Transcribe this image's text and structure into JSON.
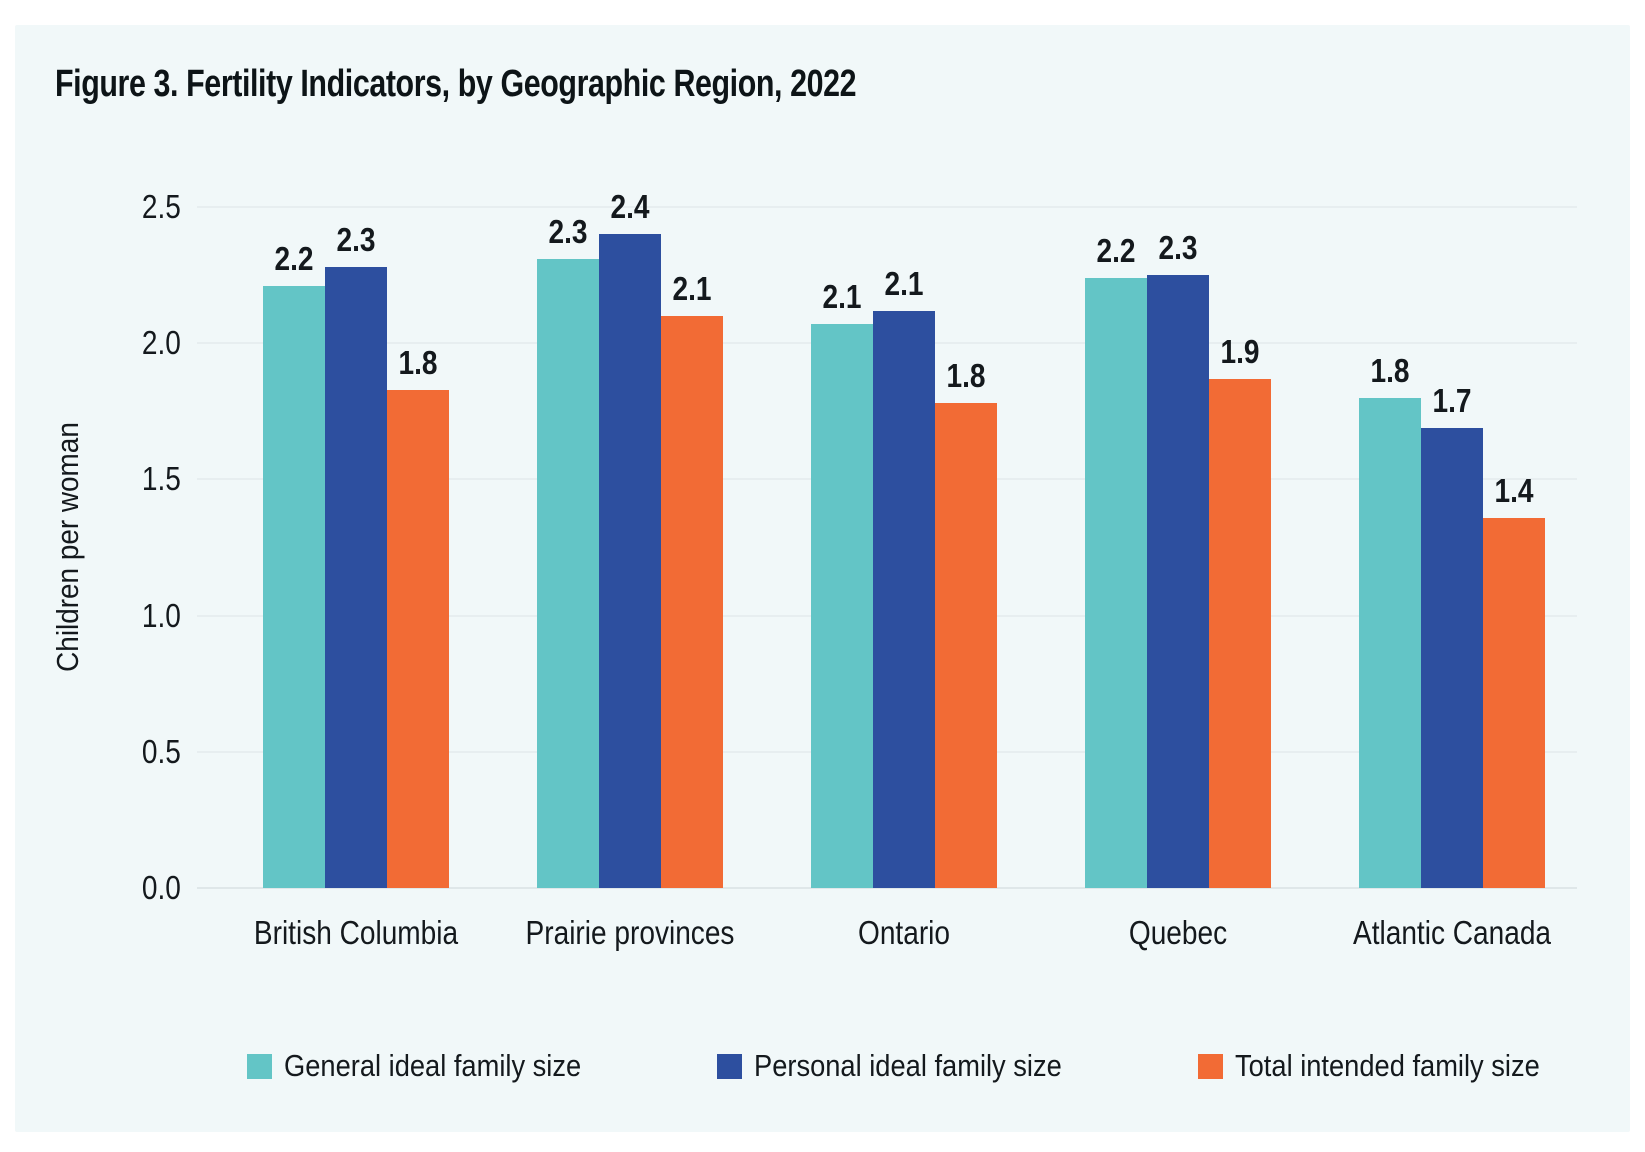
{
  "page": {
    "background": "#FFFFFF",
    "panel_background": "#F1F8F9"
  },
  "chart_data": {
    "type": "bar",
    "title": "Figure 3. Fertility Indicators, by Geographic Region, 2022",
    "xlabel": "",
    "ylabel": "Children per woman",
    "ylim": [
      0,
      2.5
    ],
    "yticks": [
      "0.0",
      "0.5",
      "1.0",
      "1.5",
      "2.0",
      "2.5"
    ],
    "grid": true,
    "legend_position": "bottom",
    "categories": [
      "British Columbia",
      "Prairie provinces",
      "Ontario",
      "Quebec",
      "Atlantic Canada"
    ],
    "series": [
      {
        "name": "General ideal family size",
        "color": "#63C5C6",
        "values": [
          2.2,
          2.3,
          2.1,
          2.2,
          1.8
        ],
        "labels": [
          "2.2",
          "2.3",
          "2.1",
          "2.2",
          "1.8"
        ],
        "bar_heights": [
          2.21,
          2.31,
          2.07,
          2.24,
          1.8
        ]
      },
      {
        "name": "Personal ideal family size",
        "color": "#2D4F9F",
        "values": [
          2.3,
          2.4,
          2.1,
          2.3,
          1.7
        ],
        "labels": [
          "2.3",
          "2.4",
          "2.1",
          "2.3",
          "1.7"
        ],
        "bar_heights": [
          2.28,
          2.4,
          2.12,
          2.25,
          1.69
        ]
      },
      {
        "name": "Total intended family size",
        "color": "#F26B35",
        "values": [
          1.8,
          2.1,
          1.8,
          1.9,
          1.4
        ],
        "labels": [
          "1.8",
          "2.1",
          "1.8",
          "1.9",
          "1.4"
        ],
        "bar_heights": [
          1.83,
          2.1,
          1.78,
          1.87,
          1.36
        ]
      }
    ],
    "colors": {
      "grid": "#E7EEF0",
      "axis_line": "#DFE7E9",
      "text": "#14191D",
      "title": "#0D1417"
    }
  }
}
